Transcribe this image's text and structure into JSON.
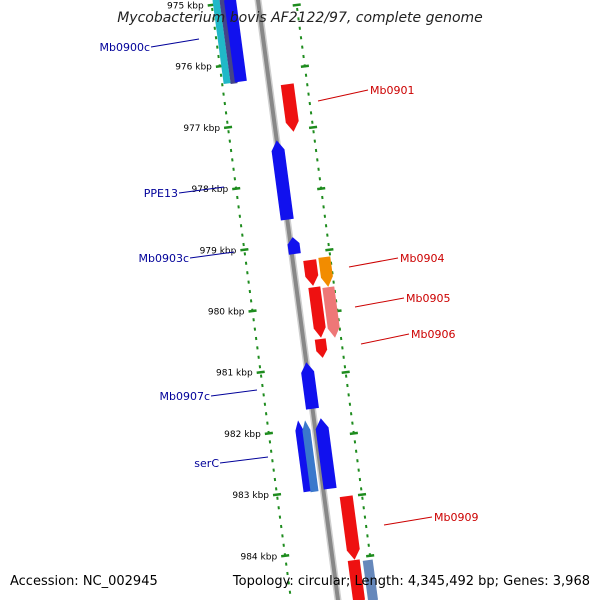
{
  "title": "Mycobacterium bovis AF2122/97, complete genome",
  "footer": {
    "accession": "Accession: NC_002945",
    "summary": "Topology: circular; Length: 4,345,492 bp; Genes: 3,968"
  },
  "colors": {
    "backbone": "#888888",
    "tick": "#1e8c1e",
    "forward_gene": "#ee1111",
    "reverse_gene": "#1111ee",
    "forward_label": "#cc0000",
    "reverse_label": "#000099"
  },
  "ticks": [
    "975 kbp",
    "976 kbp",
    "977 kbp",
    "978 kbp",
    "979 kbp",
    "980 kbp",
    "981 kbp",
    "982 kbp",
    "983 kbp",
    "984 kbp"
  ],
  "labels": [
    {
      "id": "mb0900c",
      "text": "Mb0900c",
      "strand": "reverse"
    },
    {
      "id": "mb0901",
      "text": "Mb0901",
      "strand": "forward"
    },
    {
      "id": "ppe13",
      "text": "PPE13",
      "strand": "reverse"
    },
    {
      "id": "mb0903c",
      "text": "Mb0903c",
      "strand": "reverse"
    },
    {
      "id": "mb0904",
      "text": "Mb0904",
      "strand": "forward"
    },
    {
      "id": "mb0905",
      "text": "Mb0905",
      "strand": "forward"
    },
    {
      "id": "mb0906",
      "text": "Mb0906",
      "strand": "forward"
    },
    {
      "id": "mb0907c",
      "text": "Mb0907c",
      "strand": "reverse"
    },
    {
      "id": "serc",
      "text": "serC",
      "strand": "reverse"
    },
    {
      "id": "mb0909",
      "text": "Mb0909",
      "strand": "forward"
    }
  ]
}
